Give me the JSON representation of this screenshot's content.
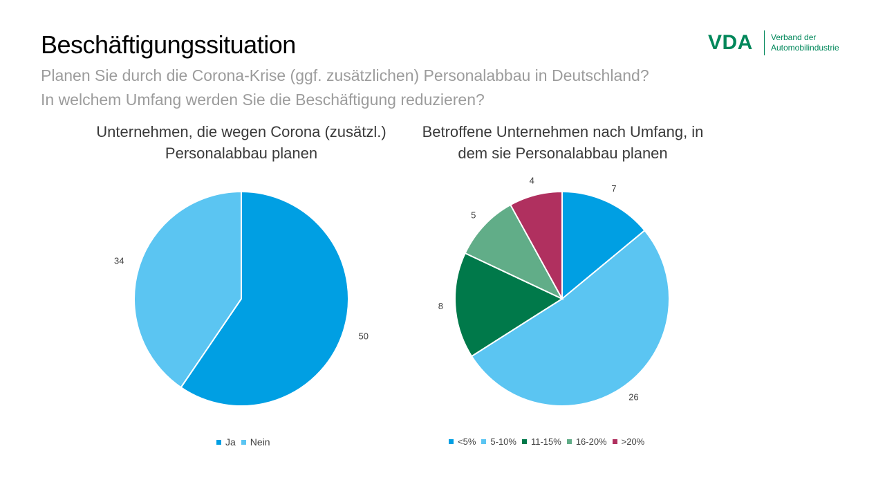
{
  "header": {
    "title": "Beschäftigungssituation",
    "subtitle_line1": "Planen Sie durch die Corona-Krise (ggf. zusätzlichen) Personalabbau in Deutschland?",
    "subtitle_line2": "In welchem Umfang werden Sie die Beschäftigung reduzieren?"
  },
  "logo": {
    "mark": "VDA",
    "text_line1": "Verband der",
    "text_line2": "Automobilindustrie",
    "color": "#00875a"
  },
  "chart_data": [
    {
      "type": "pie",
      "title_line1": "Unternehmen, die wegen Corona (zusätzl.)",
      "title_line2": "Personalabbau planen",
      "categories": [
        "Ja",
        "Nein"
      ],
      "values": [
        50,
        34
      ],
      "colors": [
        "#009fe3",
        "#5bc5f2"
      ],
      "legend_position": "bottom"
    },
    {
      "type": "pie",
      "title_line1": "Betroffene Unternehmen nach Umfang, in",
      "title_line2": "dem sie Personalabbau planen",
      "categories": [
        "<5%",
        "5-10%",
        "11-15%",
        "16-20%",
        ">20%"
      ],
      "values": [
        7,
        26,
        8,
        5,
        4
      ],
      "colors": [
        "#009fe3",
        "#5bc5f2",
        "#00794a",
        "#61ad88",
        "#b0305f"
      ],
      "legend_position": "bottom"
    }
  ]
}
